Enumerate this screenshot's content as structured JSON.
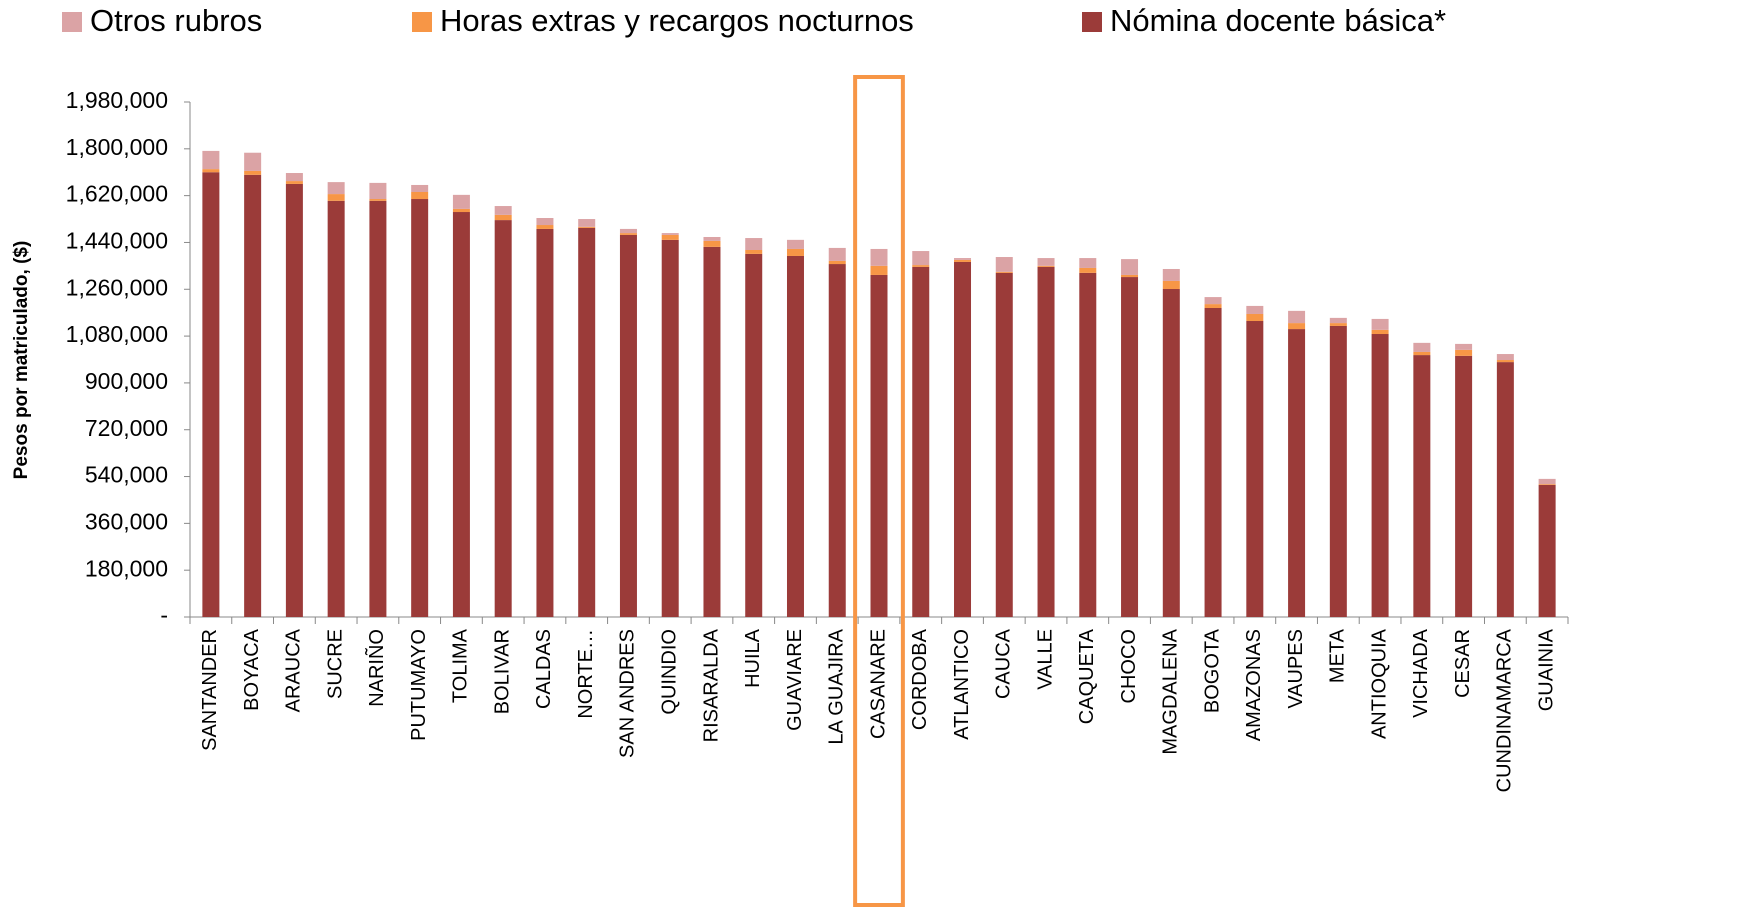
{
  "chart_data": {
    "type": "stacked_bar",
    "y_label": "Pesos por matriculado, ($)",
    "categories": [
      "SANTANDER",
      "BOYACA",
      "ARAUCA",
      "SUCRE",
      "NARIÑO",
      "PUTUMAYO",
      "TOLIMA",
      "BOLIVAR",
      "CALDAS",
      "NORTE…",
      "SAN ANDRES",
      "QUINDIO",
      "RISARALDA",
      "HUILA",
      "GUAVIARE",
      "LA GUAJIRA",
      "CASANARE",
      "CORDOBA",
      "ATLANTICO",
      "CAUCA",
      "VALLE",
      "CAQUETA",
      "CHOCO",
      "MAGDALENA",
      "BOGOTA",
      "AMAZONAS",
      "VAUPES",
      "META",
      "ANTIOQUIA",
      "VICHADA",
      "CESAR",
      "CUNDINAMARCA",
      "GUAINIA"
    ],
    "series": [
      {
        "name": "Otros rubros",
        "color": "#dba3a5",
        "values": [
          70000,
          70000,
          31000,
          46000,
          62000,
          27000,
          54000,
          34000,
          27000,
          30000,
          16000,
          7000,
          15000,
          46000,
          35000,
          50000,
          65000,
          54000,
          7000,
          57000,
          30000,
          38000,
          61000,
          46000,
          27000,
          31000,
          47000,
          20000,
          42000,
          35000,
          23000,
          23000,
          20000
        ]
      },
      {
        "name": "Horas extras y recargos nocturnos",
        "color": "#f79646",
        "values": [
          12000,
          15000,
          11000,
          26000,
          7000,
          27000,
          12000,
          20000,
          15000,
          4000,
          7000,
          19000,
          23000,
          15000,
          27000,
          12000,
          35000,
          7000,
          8000,
          4000,
          4000,
          19000,
          8000,
          31000,
          15000,
          27000,
          23000,
          11000,
          16000,
          12000,
          23000,
          8000,
          3000
        ]
      },
      {
        "name": "Nómina docente básica*",
        "color": "#9b3b39",
        "values": [
          1710000,
          1700000,
          1665000,
          1600000,
          1600000,
          1607000,
          1557000,
          1526000,
          1492000,
          1496000,
          1469000,
          1450000,
          1423000,
          1396000,
          1388000,
          1357000,
          1315000,
          1346000,
          1365000,
          1323000,
          1346000,
          1323000,
          1307000,
          1261000,
          1188000,
          1138000,
          1107000,
          1119000,
          1088000,
          1007000,
          1004000,
          980000,
          508000
        ]
      }
    ],
    "ylim": [
      0,
      1980000
    ],
    "yticks": [
      {
        "value": 0,
        "label": "-"
      },
      {
        "value": 180000,
        "label": "180,000"
      },
      {
        "value": 360000,
        "label": "360,000"
      },
      {
        "value": 540000,
        "label": "540,000"
      },
      {
        "value": 720000,
        "label": "720,000"
      },
      {
        "value": 900000,
        "label": "900,000"
      },
      {
        "value": 1080000,
        "label": "1,080,000"
      },
      {
        "value": 1260000,
        "label": "1,260,000"
      },
      {
        "value": 1440000,
        "label": "1,440,000"
      },
      {
        "value": 1620000,
        "label": "1,620,000"
      },
      {
        "value": 1800000,
        "label": "1,800,000"
      },
      {
        "value": 1980000,
        "label": "1,980,000"
      }
    ],
    "grid": false
  }
}
